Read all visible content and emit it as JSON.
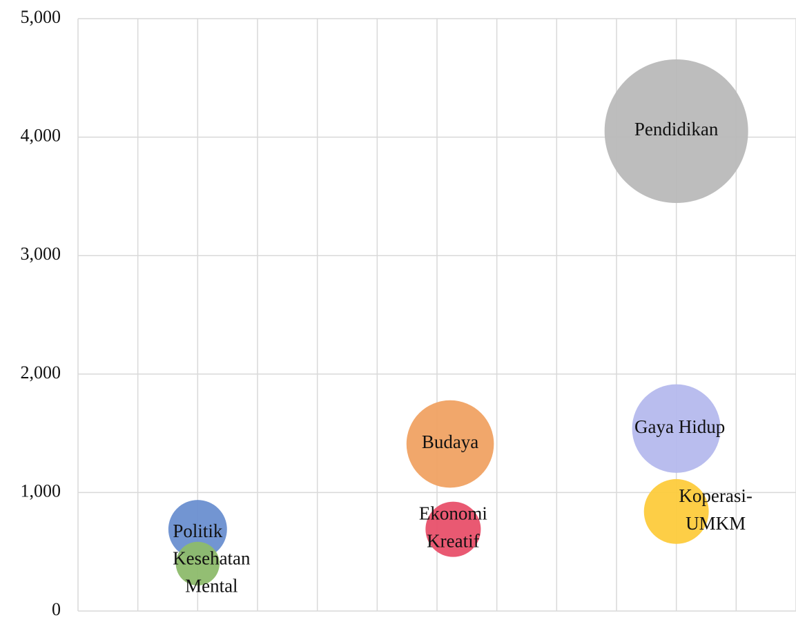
{
  "chart_data": {
    "type": "bubble",
    "xlim": [
      0,
      12
    ],
    "xticks": [
      0,
      1,
      2,
      3,
      4,
      5,
      6,
      7,
      8,
      9,
      10,
      11,
      12
    ],
    "ylim": [
      0,
      5000
    ],
    "yticks": [
      0,
      {
        "value": 1000,
        "label": "1,000"
      },
      {
        "value": 2000,
        "label": "2,000"
      },
      {
        "value": 3000,
        "label": "3,000"
      },
      {
        "value": 4000,
        "label": "4,000"
      },
      {
        "value": 5000,
        "label": "5,000"
      }
    ],
    "grid": true,
    "series": [
      {
        "name": "Politik",
        "color": "#6a8fd0",
        "x": [
          2
        ],
        "values": [
          690
        ],
        "sizes": [
          18
        ]
      },
      {
        "name": "Kesehatan\nMental",
        "color": "#8dbb6b",
        "x": [
          2
        ],
        "values": [
          400
        ],
        "sizes": [
          10
        ]
      },
      {
        "name": "Budaya",
        "color": "#f0a263",
        "x": [
          6.22
        ],
        "values": [
          1410
        ],
        "sizes": [
          40
        ]
      },
      {
        "name": "Ekonomi\nKreatif",
        "color": "#e8506a",
        "x": [
          6.27
        ],
        "values": [
          690
        ],
        "sizes": [
          16
        ]
      },
      {
        "name": "Pendidikan",
        "color": "#b9b9b9",
        "x": [
          10
        ],
        "values": [
          4050
        ],
        "sizes": [
          108
        ]
      },
      {
        "name": "Gaya Hidup",
        "color": "#b5b9ed",
        "x": [
          10
        ],
        "values": [
          1540
        ],
        "sizes": [
          41
        ]
      },
      {
        "name": "Koperasi-\nUMKM",
        "color": "#fdcb3c",
        "x": [
          10
        ],
        "values": [
          840
        ],
        "sizes": [
          22
        ]
      }
    ]
  }
}
